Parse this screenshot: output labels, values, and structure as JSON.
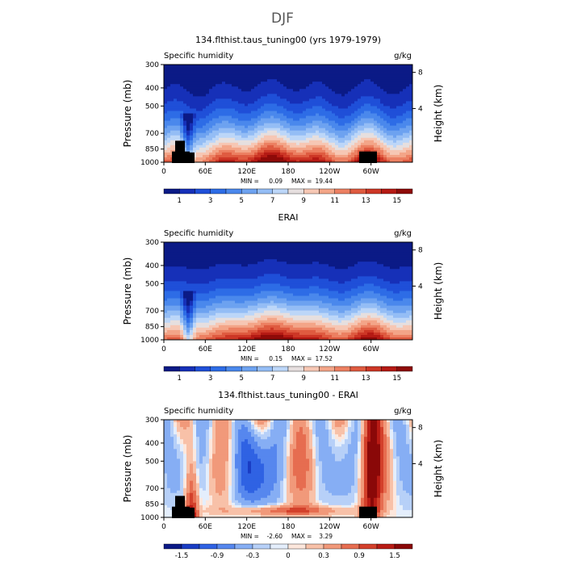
{
  "figure_title": "DJF",
  "chart_data": [
    {
      "type": "heatmap",
      "title": "134.flthist.taus_tuning00 (yrs 1979-1979)",
      "variable": "Specific humidity",
      "units": "g/kg",
      "ylabel": "Pressure (mb)",
      "ylabel2": "Height (km)",
      "x_ticks": [
        "0",
        "60E",
        "120E",
        "180",
        "120W",
        "60W"
      ],
      "y_ticks": [
        "300",
        "400",
        "500",
        "700",
        "850",
        "1000"
      ],
      "y2_ticks": [
        "8",
        "4"
      ],
      "min_label": "MIN =",
      "min_value": "0.09",
      "max_label": "MAX =",
      "max_value": "19.44",
      "colorbar_ticks": [
        "1",
        "3",
        "5",
        "7",
        "9",
        "11",
        "13",
        "15"
      ],
      "colorbar_levels": [
        0,
        1,
        2,
        3,
        4,
        5,
        6,
        7,
        8,
        9,
        10,
        11,
        12,
        13,
        14,
        15,
        16
      ],
      "kind": "model"
    },
    {
      "type": "heatmap",
      "title": "ERAI",
      "variable": "Specific humidity",
      "units": "g/kg",
      "ylabel": "Pressure (mb)",
      "ylabel2": "Height (km)",
      "x_ticks": [
        "0",
        "60E",
        "120E",
        "180",
        "120W",
        "60W"
      ],
      "y_ticks": [
        "300",
        "400",
        "500",
        "700",
        "850",
        "1000"
      ],
      "y2_ticks": [
        "8",
        "4"
      ],
      "min_label": "MIN =",
      "min_value": "0.15",
      "max_label": "MAX =",
      "max_value": "17.52",
      "colorbar_ticks": [
        "1",
        "3",
        "5",
        "7",
        "9",
        "11",
        "13",
        "15"
      ],
      "colorbar_levels": [
        0,
        1,
        2,
        3,
        4,
        5,
        6,
        7,
        8,
        9,
        10,
        11,
        12,
        13,
        14,
        15,
        16
      ],
      "kind": "obs"
    },
    {
      "type": "heatmap",
      "title": "134.flthist.taus_tuning00 - ERAI",
      "variable": "Specific humidity",
      "units": "g/kg",
      "ylabel": "Pressure (mb)",
      "ylabel2": "Height (km)",
      "x_ticks": [
        "0",
        "60E",
        "120E",
        "180",
        "120W",
        "60W"
      ],
      "y_ticks": [
        "300",
        "400",
        "500",
        "700",
        "850",
        "1000"
      ],
      "y2_ticks": [
        "8",
        "4"
      ],
      "min_label": "MIN =",
      "min_value": "-2.60",
      "max_label": "MAX =",
      "max_value": "3.29",
      "colorbar_ticks": [
        "-1.5",
        "-0.9",
        "-0.3",
        "0",
        "0.3",
        "0.9",
        "1.5"
      ],
      "colorbar_levels": [
        -2.0,
        -1.5,
        -1.2,
        -0.9,
        -0.6,
        -0.3,
        -0.1,
        0,
        0.1,
        0.3,
        0.6,
        0.9,
        1.2,
        1.5,
        2.0
      ],
      "kind": "diff"
    }
  ]
}
